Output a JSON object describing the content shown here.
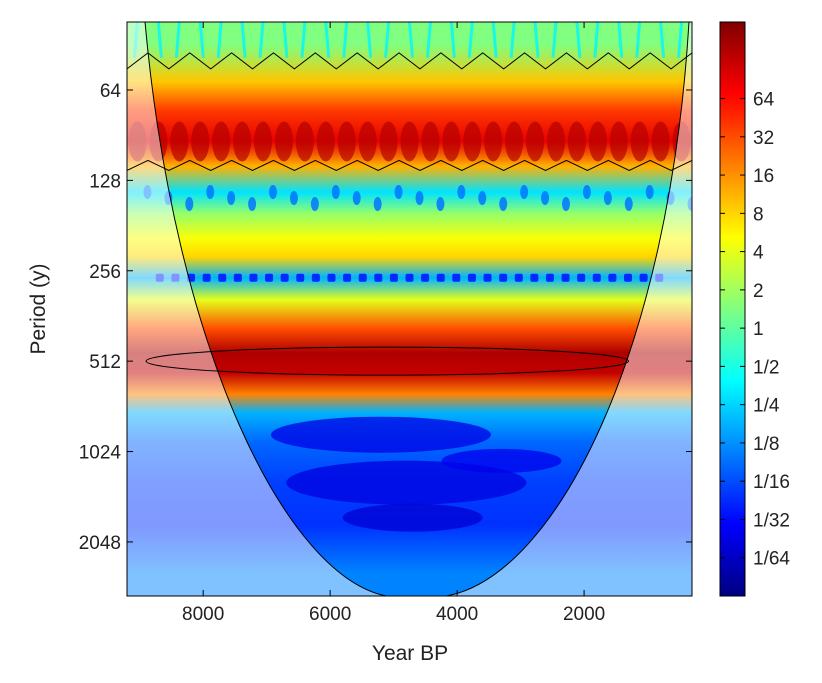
{
  "chart_data": {
    "type": "heatmap",
    "subtype": "wavelet power spectrum",
    "xlabel": "Year BP",
    "ylabel": "Period (y)",
    "x_ticks": [
      8000,
      6000,
      4000,
      2000
    ],
    "xlim": [
      9200,
      300
    ],
    "x_reversed": true,
    "y_ticks": [
      "64",
      "128",
      "256",
      "512",
      "1024",
      "2048"
    ],
    "y_tick_values": [
      64,
      128,
      256,
      512,
      1024,
      2048
    ],
    "ylim": [
      38,
      3100
    ],
    "y_scale": "log2",
    "y_reversed": true,
    "colorbar": {
      "tick_labels": [
        "64",
        "32",
        "16",
        "8",
        "4",
        "2",
        "1",
        "1/2",
        "1/4",
        "1/8",
        "1/16",
        "1/32",
        "1/64"
      ],
      "tick_values": [
        64,
        32,
        16,
        8,
        4,
        2,
        1,
        0.5,
        0.25,
        0.125,
        0.0625,
        0.03125,
        0.015625
      ],
      "scale": "log2",
      "range": [
        0.0078125,
        256
      ],
      "colormap": "jet"
    },
    "power_bands": [
      {
        "period": 45,
        "log2_power": 0.5
      },
      {
        "period": 60,
        "log2_power": 3.2
      },
      {
        "period": 75,
        "log2_power": 5.3
      },
      {
        "period": 95,
        "log2_power": 6.5
      },
      {
        "period": 115,
        "log2_power": 3.5
      },
      {
        "period": 140,
        "log2_power": -1.8
      },
      {
        "period": 165,
        "log2_power": 0.8
      },
      {
        "period": 200,
        "log2_power": 2.3
      },
      {
        "period": 230,
        "log2_power": 3.0
      },
      {
        "period": 270,
        "log2_power": -2.5
      },
      {
        "period": 320,
        "log2_power": 2.0
      },
      {
        "period": 400,
        "log2_power": 5.0
      },
      {
        "period": 480,
        "log2_power": 7.3
      },
      {
        "period": 560,
        "log2_power": 7.0
      },
      {
        "period": 660,
        "log2_power": 4.2
      },
      {
        "period": 760,
        "log2_power": -2.5
      },
      {
        "period": 950,
        "log2_power": -3.6
      },
      {
        "period": 1300,
        "log2_power": -4.2
      },
      {
        "period": 1800,
        "log2_power": -4.4
      },
      {
        "period": 2600,
        "log2_power": -3.2
      }
    ],
    "significance_contours": [
      {
        "x_start": 8900,
        "x_end": 1300,
        "period_center": 512
      }
    ],
    "colors": {
      "cone_fill": "#ffffff",
      "cone_opacity": 0.5,
      "contour": "#000000"
    }
  }
}
